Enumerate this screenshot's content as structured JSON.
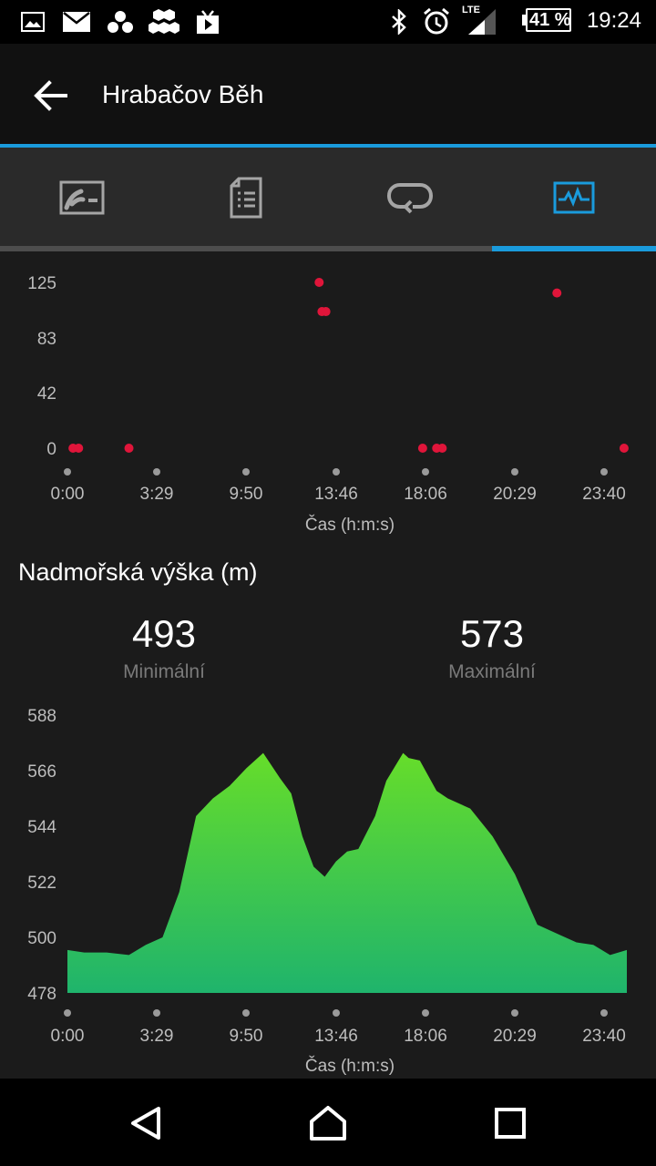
{
  "status_bar": {
    "icons": [
      "gallery-icon",
      "mail-icon",
      "hub-icon",
      "honeycomb-icon",
      "media-icon"
    ],
    "network": "LTE",
    "battery": "41 %",
    "time": "19:24"
  },
  "app_bar": {
    "title": "Hrabačov Běh"
  },
  "tabs": [
    {
      "icon": "map-icon"
    },
    {
      "icon": "details-icon"
    },
    {
      "icon": "laps-icon"
    },
    {
      "icon": "charts-icon",
      "active": true
    }
  ],
  "chart_data": [
    {
      "type": "scatter",
      "xlabel": "Čas (h:m:s)",
      "yticks": [
        0,
        42,
        83,
        125
      ],
      "xticks": [
        "0:00",
        "3:29",
        "9:50",
        "13:46",
        "18:06",
        "20:29",
        "23:40"
      ],
      "ylim": [
        0,
        125
      ],
      "points": [
        {
          "x": 0.01,
          "y": 0
        },
        {
          "x": 0.02,
          "y": 0
        },
        {
          "x": 0.11,
          "y": 0
        },
        {
          "x": 0.45,
          "y": 125
        },
        {
          "x": 0.455,
          "y": 103
        },
        {
          "x": 0.462,
          "y": 103
        },
        {
          "x": 0.635,
          "y": 0
        },
        {
          "x": 0.66,
          "y": 0
        },
        {
          "x": 0.67,
          "y": 0
        },
        {
          "x": 0.875,
          "y": 117
        },
        {
          "x": 0.995,
          "y": 0
        }
      ],
      "color": "#e0153a"
    },
    {
      "type": "area",
      "title": "Nadmořská výška (m)",
      "xlabel": "Čas (h:m:s)",
      "yticks": [
        478,
        500,
        522,
        544,
        566,
        588
      ],
      "xticks": [
        "0:00",
        "3:29",
        "9:50",
        "13:46",
        "18:06",
        "20:29",
        "23:40"
      ],
      "ylim": [
        478,
        588
      ],
      "min": {
        "value": "493",
        "label": "Minimální"
      },
      "max": {
        "value": "573",
        "label": "Maximální"
      },
      "x": [
        0,
        0.03,
        0.07,
        0.11,
        0.14,
        0.17,
        0.2,
        0.23,
        0.26,
        0.29,
        0.32,
        0.35,
        0.38,
        0.4,
        0.42,
        0.44,
        0.46,
        0.48,
        0.5,
        0.52,
        0.55,
        0.57,
        0.6,
        0.61,
        0.63,
        0.66,
        0.68,
        0.72,
        0.76,
        0.8,
        0.84,
        0.88,
        0.91,
        0.94,
        0.97,
        1.0
      ],
      "values": [
        495,
        494,
        494,
        493,
        497,
        500,
        518,
        548,
        555,
        560,
        567,
        573,
        563,
        557,
        540,
        528,
        524,
        530,
        534,
        535,
        548,
        562,
        573,
        571,
        570,
        558,
        555,
        551,
        540,
        525,
        505,
        501,
        498,
        497,
        493,
        495
      ],
      "color_top": "#66dd2a",
      "color_bottom": "#1fb46c"
    }
  ]
}
